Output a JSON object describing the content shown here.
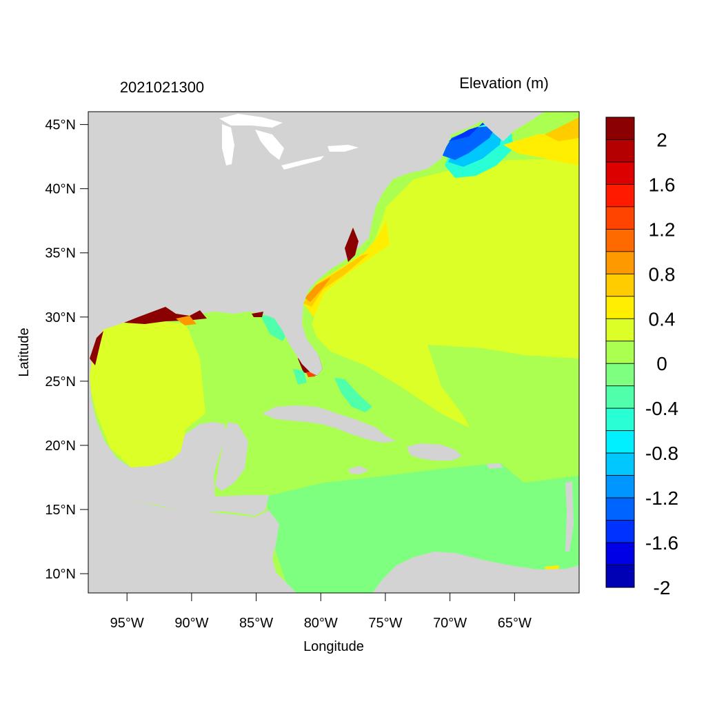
{
  "map": {
    "date_label": "2021021300",
    "variable_title": "Elevation (m)",
    "x_axis_label": "Longitude",
    "y_axis_label": "Latitude",
    "lon_ticks": [
      "95°W",
      "90°W",
      "85°W",
      "80°W",
      "75°W",
      "70°W",
      "65°W"
    ],
    "lat_ticks": [
      "45°N",
      "40°N",
      "35°N",
      "30°N",
      "25°N",
      "20°N",
      "15°N",
      "10°N"
    ],
    "lon_tick_values": [
      -95,
      -90,
      -85,
      -80,
      -75,
      -70,
      -65
    ],
    "lat_tick_values": [
      45,
      40,
      35,
      30,
      25,
      20,
      15,
      10
    ],
    "extent": {
      "lon_min": -98,
      "lon_max": -60,
      "lat_min": 8.5,
      "lat_max": 46
    }
  },
  "colorbar": {
    "labels": [
      "2",
      "1.6",
      "1.2",
      "0.8",
      "0.4",
      "0",
      "-0.4",
      "-0.8",
      "-1.2",
      "-1.6",
      "-2"
    ],
    "colors_top_to_bottom": [
      "#8b0000",
      "#b40000",
      "#dd0000",
      "#ff1a00",
      "#ff4400",
      "#ff6a00",
      "#ff9900",
      "#ffcc00",
      "#ffee00",
      "#dcff28",
      "#aaff50",
      "#7fff80",
      "#50ffaa",
      "#28ffd4",
      "#00f0ff",
      "#00c8ff",
      "#0096ff",
      "#0064ff",
      "#0032ff",
      "#0000e6",
      "#0000b4"
    ]
  },
  "legend_colors": {
    "land": "#d3d3d3",
    "inland_water": "#ffffff",
    "surge_high": "#8b0000"
  }
}
